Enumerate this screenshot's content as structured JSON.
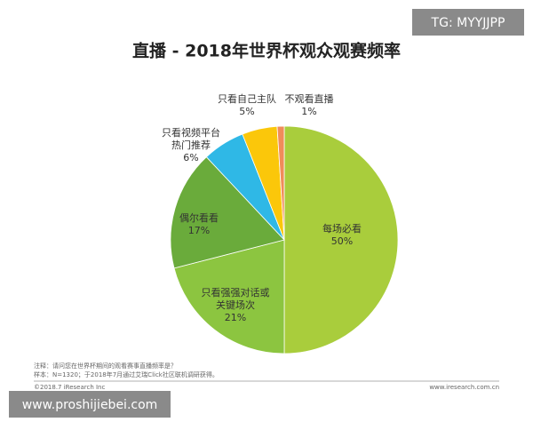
{
  "chart_data": {
    "type": "pie",
    "title": "直播 - 2018年世界杯观众观赛频率",
    "categories": [
      "每场必看",
      "只看强强对话或\n关键场次",
      "偶尔看看",
      "只看视频平台\n热门推荐",
      "只看自己主队",
      "不观看直播"
    ],
    "values": [
      50,
      21,
      17,
      6,
      5,
      1
    ],
    "value_labels": [
      "50%",
      "21%",
      "17%",
      "6%",
      "5%",
      "1%"
    ],
    "colors": [
      "#a9cd3c",
      "#8cc540",
      "#6aab3b",
      "#2fb8e6",
      "#fbc70a",
      "#f08c5a"
    ],
    "notes": [
      "注释：请问您在世界杯期间的观看赛事直播频率是？",
      "样本：N=1320；于2018年7月通过艾瑞Click社区联机调研获得。"
    ],
    "copyright": "©2018.7 iResearch Inc",
    "source_url": "www.iresearch.com.cn"
  },
  "watermarks": [
    "TG: MYYJJPP",
    "www.proshijiebei.com"
  ]
}
